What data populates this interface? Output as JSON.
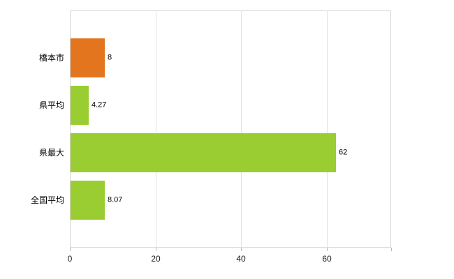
{
  "chart_data": {
    "type": "bar",
    "orientation": "horizontal",
    "title": "",
    "xlabel": "",
    "ylabel": "",
    "categories": [
      "橋本市",
      "県平均",
      "県最大",
      "全国平均"
    ],
    "values": [
      8,
      4.27,
      62,
      8.07
    ],
    "value_labels": [
      "8",
      "4.27",
      "62",
      "8.07"
    ],
    "bar_colors": [
      "#e2751d",
      "#9acd32",
      "#9acd32",
      "#9acd32"
    ],
    "xlim": [
      0,
      75
    ],
    "xticks": [
      0,
      20,
      40,
      60
    ],
    "xtick_labels": [
      "0",
      "20",
      "40",
      "60"
    ],
    "grid": "vertical-gridlines-on",
    "legend": "none"
  },
  "style": {
    "axis_color": "#d6d6d6",
    "grid_color": "#e2e2e2",
    "tick_color": "#b9b9b9",
    "text_color": "#000000"
  }
}
